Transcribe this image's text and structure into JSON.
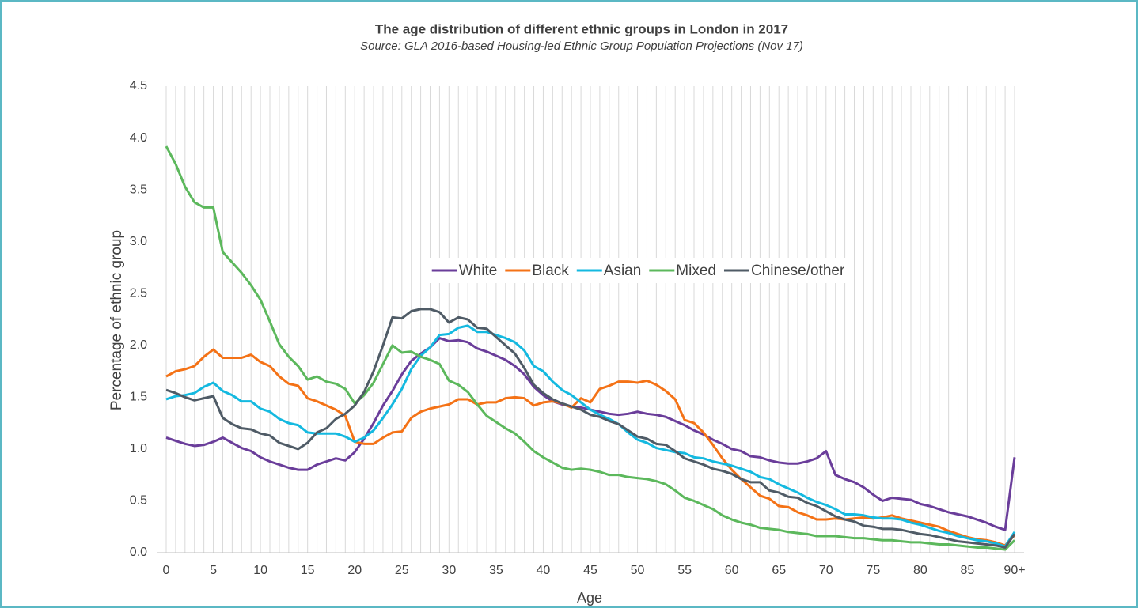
{
  "chart_data": {
    "type": "line",
    "title": "The age distribution of different ethnic groups in London in 2017",
    "subtitle": "Source: GLA 2016-based Housing-led Ethnic Group Population Projections (Nov 17)",
    "x_label": "Age",
    "y_label": "Percentage of ethnic group",
    "categories": [
      "0",
      null,
      null,
      null,
      null,
      "5",
      null,
      null,
      null,
      null,
      "10",
      null,
      null,
      null,
      null,
      "15",
      null,
      null,
      null,
      null,
      "20",
      null,
      null,
      null,
      null,
      "25",
      null,
      null,
      null,
      null,
      "30",
      null,
      null,
      null,
      null,
      "35",
      null,
      null,
      null,
      null,
      "40",
      null,
      null,
      null,
      null,
      "45",
      null,
      null,
      null,
      null,
      "50",
      null,
      null,
      null,
      null,
      "55",
      null,
      null,
      null,
      null,
      "60",
      null,
      null,
      null,
      null,
      "65",
      null,
      null,
      null,
      null,
      "70",
      null,
      null,
      null,
      null,
      "75",
      null,
      null,
      null,
      null,
      "80",
      null,
      null,
      null,
      null,
      "85",
      null,
      null,
      null,
      null,
      "90+"
    ],
    "ylim": [
      0,
      4.5
    ],
    "yticks": [
      {
        "value": 0,
        "label": "0.0"
      },
      0.5,
      {
        "value": 1,
        "label": "1.0"
      },
      1.5,
      {
        "value": 2,
        "label": "2.0"
      },
      2.5,
      {
        "value": 3,
        "label": "3.0"
      },
      3.5,
      {
        "value": 4,
        "label": "4.0"
      },
      4.5
    ],
    "grid": "x",
    "legend": "center",
    "series": [
      {
        "name": "White",
        "color": "#6a3d9a",
        "values": [
          1.11,
          1.08,
          1.05,
          1.03,
          1.04,
          1.07,
          1.11,
          1.06,
          1.01,
          0.98,
          0.92,
          0.88,
          0.85,
          0.82,
          0.8,
          0.8,
          0.85,
          0.88,
          0.91,
          0.89,
          0.97,
          1.1,
          1.25,
          1.42,
          1.56,
          1.72,
          1.85,
          1.92,
          1.98,
          2.07,
          2.04,
          2.05,
          2.03,
          1.97,
          1.94,
          1.9,
          1.86,
          1.8,
          1.72,
          1.6,
          1.52,
          1.46,
          1.43,
          1.41,
          1.4,
          1.38,
          1.36,
          1.34,
          1.33,
          1.34,
          1.36,
          1.34,
          1.33,
          1.31,
          1.27,
          1.23,
          1.18,
          1.14,
          1.09,
          1.05,
          1.0,
          0.98,
          0.93,
          0.92,
          0.89,
          0.87,
          0.86,
          0.86,
          0.88,
          0.91,
          0.98,
          0.75,
          0.71,
          0.68,
          0.63,
          0.56,
          0.5,
          0.53,
          0.52,
          0.51,
          0.47,
          0.45,
          0.42,
          0.39,
          0.37,
          0.35,
          0.32,
          0.29,
          0.25,
          0.22,
          0.92
        ]
      },
      {
        "name": "Black",
        "color": "#f47216",
        "values": [
          1.7,
          1.75,
          1.77,
          1.8,
          1.89,
          1.96,
          1.88,
          1.88,
          1.88,
          1.91,
          1.84,
          1.8,
          1.7,
          1.63,
          1.61,
          1.49,
          1.46,
          1.42,
          1.38,
          1.32,
          1.07,
          1.05,
          1.05,
          1.11,
          1.16,
          1.17,
          1.3,
          1.36,
          1.39,
          1.41,
          1.43,
          1.48,
          1.48,
          1.43,
          1.45,
          1.45,
          1.49,
          1.5,
          1.49,
          1.42,
          1.45,
          1.46,
          1.44,
          1.4,
          1.49,
          1.45,
          1.58,
          1.61,
          1.65,
          1.65,
          1.64,
          1.66,
          1.62,
          1.56,
          1.48,
          1.28,
          1.25,
          1.16,
          1.04,
          0.91,
          0.8,
          0.71,
          0.63,
          0.55,
          0.52,
          0.45,
          0.44,
          0.39,
          0.36,
          0.32,
          0.32,
          0.33,
          0.32,
          0.33,
          0.34,
          0.33,
          0.34,
          0.36,
          0.33,
          0.31,
          0.29,
          0.27,
          0.25,
          0.21,
          0.18,
          0.15,
          0.13,
          0.12,
          0.1,
          0.07,
          0.17
        ]
      },
      {
        "name": "Asian",
        "color": "#14b9e0",
        "values": [
          1.48,
          1.51,
          1.52,
          1.54,
          1.6,
          1.64,
          1.56,
          1.52,
          1.46,
          1.46,
          1.39,
          1.36,
          1.29,
          1.25,
          1.23,
          1.16,
          1.15,
          1.15,
          1.15,
          1.12,
          1.07,
          1.11,
          1.18,
          1.3,
          1.43,
          1.58,
          1.77,
          1.9,
          1.98,
          2.1,
          2.11,
          2.17,
          2.19,
          2.13,
          2.13,
          2.1,
          2.07,
          2.03,
          1.95,
          1.8,
          1.75,
          1.65,
          1.57,
          1.52,
          1.45,
          1.38,
          1.33,
          1.29,
          1.24,
          1.16,
          1.09,
          1.06,
          1.01,
          0.99,
          0.97,
          0.96,
          0.92,
          0.91,
          0.88,
          0.86,
          0.84,
          0.81,
          0.78,
          0.73,
          0.71,
          0.66,
          0.62,
          0.58,
          0.53,
          0.49,
          0.46,
          0.42,
          0.37,
          0.37,
          0.36,
          0.34,
          0.33,
          0.33,
          0.32,
          0.29,
          0.27,
          0.24,
          0.21,
          0.19,
          0.16,
          0.14,
          0.12,
          0.11,
          0.09,
          0.06,
          0.2
        ]
      },
      {
        "name": "Mixed",
        "color": "#5cb85c",
        "values": [
          3.92,
          3.75,
          3.53,
          3.38,
          3.33,
          3.33,
          2.9,
          2.8,
          2.7,
          2.58,
          2.44,
          2.23,
          2.01,
          1.89,
          1.8,
          1.67,
          1.7,
          1.65,
          1.63,
          1.58,
          1.44,
          1.52,
          1.64,
          1.82,
          2.0,
          1.93,
          1.94,
          1.89,
          1.86,
          1.82,
          1.66,
          1.62,
          1.55,
          1.43,
          1.32,
          1.26,
          1.2,
          1.15,
          1.07,
          0.98,
          0.92,
          0.87,
          0.82,
          0.8,
          0.81,
          0.8,
          0.78,
          0.75,
          0.75,
          0.73,
          0.72,
          0.71,
          0.69,
          0.66,
          0.6,
          0.53,
          0.5,
          0.46,
          0.42,
          0.36,
          0.32,
          0.29,
          0.27,
          0.24,
          0.23,
          0.22,
          0.2,
          0.19,
          0.18,
          0.16,
          0.16,
          0.16,
          0.15,
          0.14,
          0.14,
          0.13,
          0.12,
          0.12,
          0.11,
          0.1,
          0.1,
          0.09,
          0.08,
          0.08,
          0.07,
          0.06,
          0.05,
          0.05,
          0.04,
          0.03,
          0.12
        ]
      },
      {
        "name": "Chinese/other",
        "color": "#4f5b66",
        "values": [
          1.57,
          1.54,
          1.5,
          1.47,
          1.49,
          1.51,
          1.3,
          1.24,
          1.2,
          1.19,
          1.15,
          1.13,
          1.06,
          1.03,
          1.0,
          1.06,
          1.16,
          1.2,
          1.29,
          1.34,
          1.42,
          1.55,
          1.75,
          2.0,
          2.27,
          2.26,
          2.33,
          2.35,
          2.35,
          2.32,
          2.22,
          2.27,
          2.25,
          2.17,
          2.16,
          2.08,
          2.0,
          1.92,
          1.78,
          1.62,
          1.54,
          1.48,
          1.44,
          1.41,
          1.38,
          1.33,
          1.31,
          1.27,
          1.24,
          1.18,
          1.12,
          1.1,
          1.05,
          1.04,
          0.98,
          0.91,
          0.88,
          0.85,
          0.81,
          0.79,
          0.76,
          0.71,
          0.68,
          0.68,
          0.6,
          0.58,
          0.54,
          0.53,
          0.48,
          0.45,
          0.4,
          0.35,
          0.32,
          0.3,
          0.26,
          0.25,
          0.23,
          0.23,
          0.22,
          0.2,
          0.18,
          0.17,
          0.15,
          0.13,
          0.11,
          0.1,
          0.09,
          0.08,
          0.07,
          0.05,
          0.18
        ]
      }
    ]
  }
}
